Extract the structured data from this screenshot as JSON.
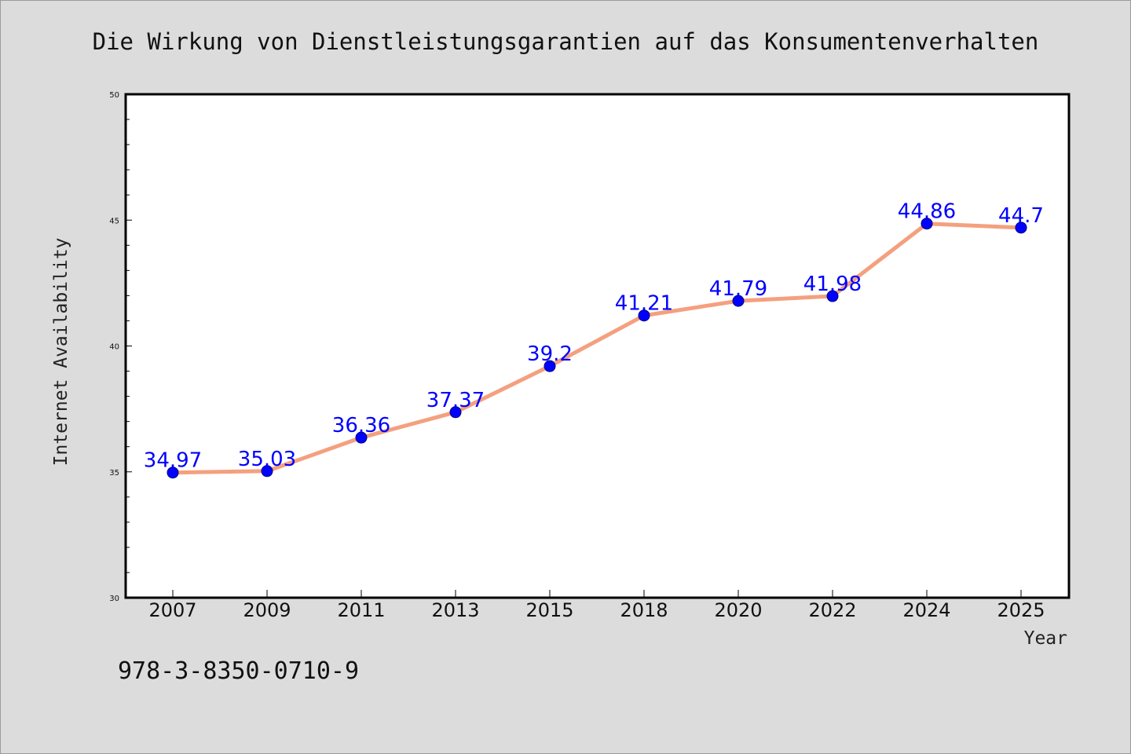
{
  "chart_data": {
    "type": "line",
    "title": "Die Wirkung von Dienstleistungsgarantien auf das Konsumentenverhalten",
    "xlabel": "Year",
    "ylabel": "Internet Availability",
    "categories": [
      "2007",
      "2009",
      "2011",
      "2013",
      "2015",
      "2018",
      "2020",
      "2022",
      "2024",
      "2025"
    ],
    "series": [
      {
        "values": [
          34.97,
          35.03,
          36.36,
          37.37,
          39.2,
          41.21,
          41.79,
          41.98,
          44.86,
          44.7
        ],
        "labels": [
          "34.97",
          "35.03",
          "36.36",
          "37.37",
          "39.2",
          "41.21",
          "41.79",
          "41.98",
          "44.86",
          "44.7"
        ]
      }
    ],
    "ylim": [
      30,
      50
    ],
    "yticks": [
      "30",
      "35",
      "40",
      "45",
      "50"
    ],
    "grid": false,
    "legend": "none",
    "colors": {
      "line": "#f4a07f",
      "marker": "#0000ff",
      "label": "#0000ff"
    }
  },
  "footer": {
    "isbn": "978-3-8350-0710-9"
  }
}
